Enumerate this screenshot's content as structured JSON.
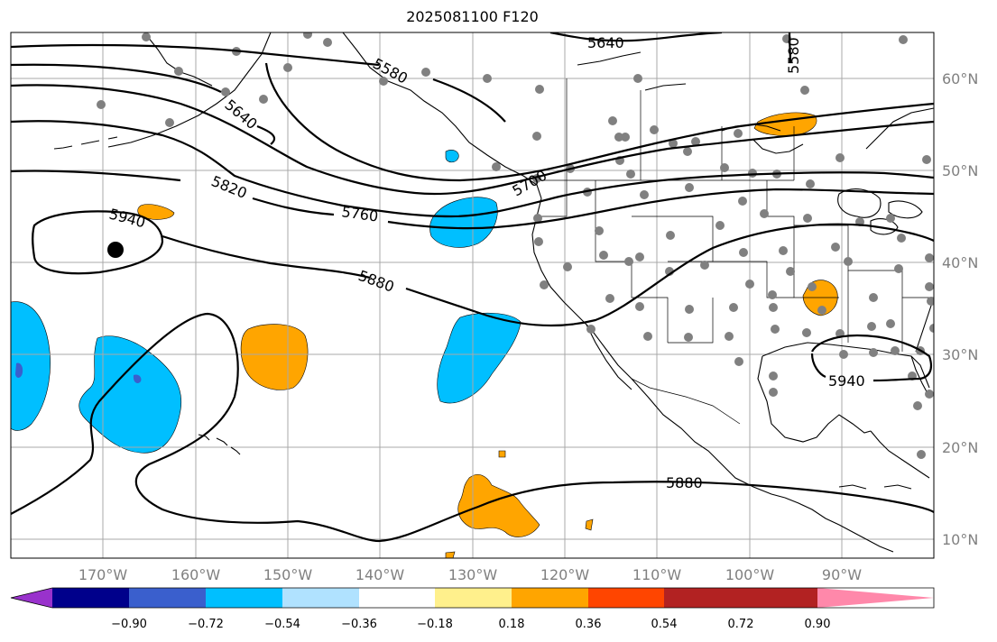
{
  "title": "2025081100 F120",
  "lat_labels": [
    "60°N",
    "50°N",
    "40°N",
    "30°N",
    "20°N",
    "10°N"
  ],
  "lon_labels": [
    "170°W",
    "160°W",
    "150°W",
    "140°W",
    "130°W",
    "120°W",
    "110°W",
    "100°W",
    "90°W"
  ],
  "contour_labels": [
    "5640",
    "5580",
    "5640",
    "5580",
    "5820",
    "5760",
    "5700",
    "5940",
    "5880",
    "5940",
    "5880"
  ],
  "colorbar": {
    "ticks": [
      "−0.90",
      "−0.72",
      "−0.54",
      "−0.36",
      "−0.18",
      "0.18",
      "0.36",
      "0.54",
      "0.72",
      "0.90"
    ],
    "colors": [
      "#9932cc",
      "#00008b",
      "#3a5fcd",
      "#00bfff",
      "#b0e2ff",
      "#ffffff",
      "#fff08c",
      "#ffa500",
      "#ff4500",
      "#b22222",
      "#ff88aa"
    ]
  },
  "legend_colors": {
    "contour": "#000000",
    "coast": "#000000",
    "grid": "#a9a9a9",
    "station": "#808080"
  }
}
